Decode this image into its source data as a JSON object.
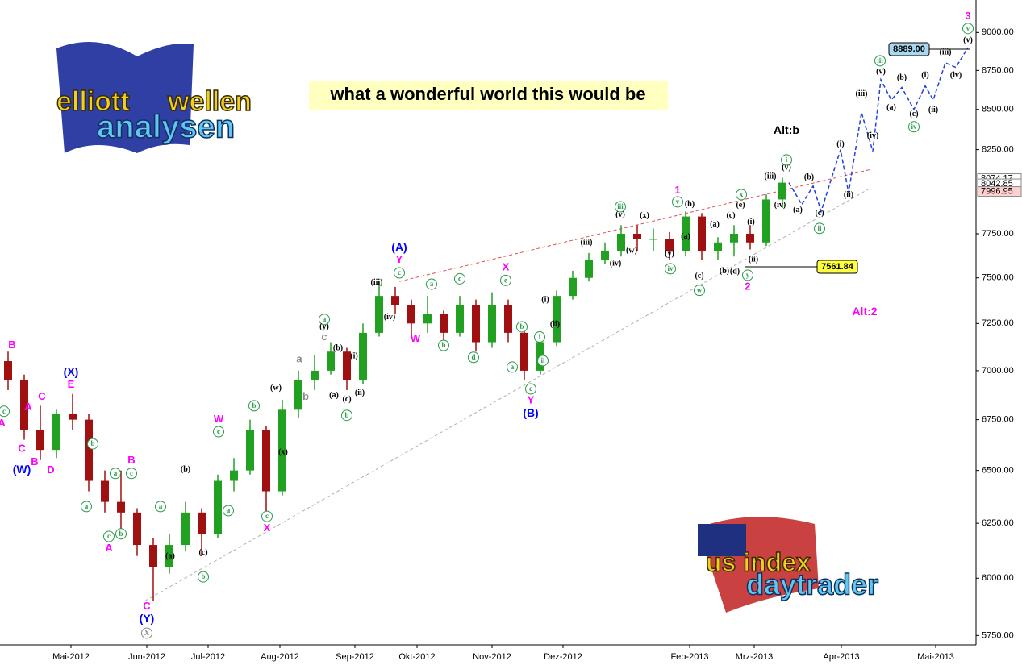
{
  "chart_data": {
    "type": "candlestick",
    "banner": "what a wonderful world this would be",
    "logo_top": [
      "elliott",
      "wellen",
      "analysen"
    ],
    "logo_bottom": [
      "us index",
      "daytrader"
    ],
    "log_scale": true,
    "grid": false,
    "up_color": "#22a022",
    "down_color": "#a01010",
    "xlim": [
      -0.5,
      60
    ],
    "ylim": [
      5710,
      9220
    ],
    "xticks": [
      {
        "value": 3.9,
        "label": "Mai-2012"
      },
      {
        "value": 8.6,
        "label": "Jun-2012"
      },
      {
        "value": 12.4,
        "label": "Jul-2012"
      },
      {
        "value": 16.85,
        "label": "Aug-2012"
      },
      {
        "value": 21.5,
        "label": "Sep-2012"
      },
      {
        "value": 25.35,
        "label": "Okt-2012"
      },
      {
        "value": 30,
        "label": "Nov-2012"
      },
      {
        "value": 34.4,
        "label": "Dez-2012"
      },
      {
        "value": 42.25,
        "label": "Feb-2013"
      },
      {
        "value": 46.25,
        "label": "Mrz-2013"
      },
      {
        "value": 51.65,
        "label": "Apr-2013"
      },
      {
        "value": 57.5,
        "label": "Mai-2013"
      }
    ],
    "yticks": [
      {
        "value": 5750,
        "label": "5750.00"
      },
      {
        "value": 6000,
        "label": "6000.00"
      },
      {
        "value": 6250,
        "label": "6250.00"
      },
      {
        "value": 6500,
        "label": "6500.00"
      },
      {
        "value": 6750,
        "label": "6750.00"
      },
      {
        "value": 7000,
        "label": "7000.00"
      },
      {
        "value": 7250,
        "label": "7250.00"
      },
      {
        "value": 7500,
        "label": "7500.00"
      },
      {
        "value": 7750,
        "label": "7750.00"
      },
      {
        "value": 8250,
        "label": "8250.00"
      },
      {
        "value": 8500,
        "label": "8500.00"
      },
      {
        "value": 8750,
        "label": "8750.00"
      },
      {
        "value": 9000,
        "label": "9000.00"
      }
    ],
    "x": [
      0,
      1,
      2,
      3,
      4,
      5,
      6,
      7,
      8,
      9,
      10,
      11,
      12,
      13,
      14,
      15,
      16,
      17,
      18,
      19,
      20,
      21,
      22,
      23,
      24,
      25,
      26,
      27,
      28,
      29,
      30,
      31,
      32,
      33,
      34,
      35,
      36,
      37,
      38,
      39,
      40,
      41,
      42,
      43,
      44,
      45,
      46,
      47,
      48
    ],
    "open": [
      7050,
      6950,
      6700,
      6600,
      6780,
      6750,
      6450,
      6350,
      6300,
      6150,
      6050,
      6150,
      6300,
      6200,
      6450,
      6500,
      6700,
      6400,
      6800,
      6950,
      7000,
      7100,
      6950,
      7200,
      7400,
      7350,
      7250,
      7300,
      7200,
      7350,
      7150,
      7350,
      7200,
      7000,
      7150,
      7400,
      7500,
      7600,
      7650,
      7750,
      7720,
      7720,
      7650,
      7850,
      7650,
      7700,
      7750,
      7700,
      7950
    ],
    "high": [
      7100,
      6980,
      6820,
      6800,
      6880,
      6780,
      6500,
      6500,
      6320,
      6180,
      6200,
      6350,
      6320,
      6480,
      6560,
      6750,
      6720,
      6850,
      7000,
      7080,
      7150,
      7120,
      7250,
      7480,
      7450,
      7380,
      7400,
      7320,
      7400,
      7380,
      7420,
      7380,
      7220,
      7200,
      7430,
      7540,
      7640,
      7700,
      7800,
      7800,
      7780,
      7760,
      7880,
      7870,
      7730,
      7800,
      7800,
      7980,
      8080
    ],
    "low": [
      6900,
      6650,
      6550,
      6560,
      6700,
      6400,
      6300,
      6220,
      6100,
      5900,
      6020,
      6120,
      6100,
      6180,
      6400,
      6480,
      6300,
      6380,
      6760,
      6900,
      6980,
      6900,
      6930,
      7180,
      7300,
      7180,
      7200,
      7150,
      7180,
      7100,
      7120,
      7150,
      6950,
      6980,
      7130,
      7380,
      7480,
      7580,
      7620,
      7650,
      7650,
      7600,
      7620,
      7600,
      7600,
      7620,
      7660,
      7680,
      7900
    ],
    "close": [
      6950,
      6700,
      6600,
      6780,
      6750,
      6450,
      6350,
      6300,
      6150,
      6050,
      6150,
      6300,
      6200,
      6450,
      6500,
      6700,
      6400,
      6800,
      6950,
      7000,
      7100,
      6950,
      7200,
      7400,
      7350,
      7250,
      7300,
      7200,
      7350,
      7150,
      7350,
      7200,
      7000,
      7150,
      7400,
      7500,
      7600,
      7650,
      7750,
      7720,
      7720,
      7650,
      7850,
      7650,
      7700,
      7750,
      7700,
      7950,
      8050
    ],
    "projection": {
      "color": "#2040e0",
      "x": [
        48.4,
        49.2,
        49.9,
        50.4,
        51.6,
        52.1,
        52.9,
        53.6,
        54.1,
        54.75,
        55.4,
        56.15,
        56.85,
        57.35,
        58.1,
        58.75,
        59.5
      ],
      "values": [
        8050,
        7920,
        8030,
        7880,
        8250,
        7990,
        8480,
        8240,
        8690,
        8560,
        8640,
        8500,
        8650,
        8560,
        8800,
        8770,
        8900
      ]
    },
    "trendlines": [
      {
        "color": "#e05050",
        "x": [
          24.25,
          53.5
        ],
        "values": [
          7480,
          8130
        ]
      },
      {
        "color": "#b0b0b0",
        "x": [
          8.5,
          53.5
        ],
        "values": [
          5900,
          8020
        ]
      }
    ],
    "reference_line": 7350,
    "axis_marks": [
      {
        "value": 8074.17,
        "color": "#ffffff"
      },
      {
        "value": 8042.85,
        "color": "#ffffff"
      },
      {
        "value": 7996.95,
        "color": "#ffd0d0"
      }
    ],
    "callouts": [
      {
        "value": 8889,
        "label": "8889.00",
        "x": 55.85,
        "color": "#a8d8f0"
      },
      {
        "value": 7561.84,
        "label": "7561.84",
        "x": 51.4,
        "color": "#ffff40"
      }
    ],
    "labels": [
      {
        "text": "(A)",
        "x": 24.25,
        "y": 7668,
        "color": "#0000ff"
      },
      {
        "text": "(B)",
        "x": 32.4,
        "y": 6780,
        "color": "#0000ff"
      },
      {
        "text": "(Y)",
        "x": 8.6,
        "y": 5819,
        "color": "#0000ff"
      },
      {
        "text": "(X)",
        "x": 3.9,
        "y": 6989,
        "color": "#0000ff"
      },
      {
        "text": "(W)",
        "x": 0.85,
        "y": 6502,
        "color": "#0000ff"
      },
      {
        "text": "Y",
        "x": 24.25,
        "y": 7601,
        "color": "#ff00ff"
      },
      {
        "text": "W",
        "x": 25.25,
        "y": 7168,
        "color": "#ff00ff"
      },
      {
        "text": "X",
        "x": 30.85,
        "y": 7556,
        "color": "#ff00ff"
      },
      {
        "text": "Y",
        "x": 32.4,
        "y": 6845,
        "color": "#ff00ff"
      },
      {
        "text": "1",
        "x": 41.5,
        "y": 8003,
        "color": "#ff00ff"
      },
      {
        "text": "2",
        "x": 45.85,
        "y": 7449,
        "color": "#ff00ff"
      },
      {
        "text": "3",
        "x": 59.5,
        "y": 9108,
        "color": "#ff00ff"
      },
      {
        "text": "C",
        "x": 8.6,
        "y": 5875,
        "color": "#ff00ff"
      },
      {
        "text": "E",
        "x": 3.9,
        "y": 6927,
        "color": "#ff00ff"
      },
      {
        "text": "W",
        "x": 13.05,
        "y": 6751,
        "color": "#ff00ff"
      },
      {
        "text": "X",
        "x": 16.05,
        "y": 6226,
        "color": "#ff00ff"
      },
      {
        "text": "A",
        "x": 6.25,
        "y": 6133,
        "color": "#ff00ff"
      },
      {
        "text": "B",
        "x": 7.65,
        "y": 6548,
        "color": "#ff00ff"
      },
      {
        "text": "B",
        "x": 0.25,
        "y": 7133,
        "color": "#ff00ff"
      },
      {
        "text": "A",
        "x": 1.25,
        "y": 6812,
        "color": "#ff00ff"
      },
      {
        "text": "C",
        "x": 2.1,
        "y": 6864,
        "color": "#ff00ff"
      },
      {
        "text": "A",
        "x": -0.4,
        "y": 6730,
        "color": "#ff00ff"
      },
      {
        "text": "C",
        "x": 0.85,
        "y": 6605,
        "color": "#ff00ff"
      },
      {
        "text": "B",
        "x": 1.65,
        "y": 6540,
        "color": "#ff00ff"
      },
      {
        "text": "D",
        "x": 2.65,
        "y": 6500,
        "color": "#ff00ff"
      },
      {
        "text": "Alt:2",
        "x": 53.1,
        "y": 7311,
        "color": "#ff00ff"
      },
      {
        "text": "Alt:b",
        "x": 48.25,
        "y": 8365,
        "color": "#000000"
      },
      {
        "text": "iii",
        "x": 37.95,
        "y": 7907,
        "color": "#2a9a4a",
        "circled": true
      },
      {
        "text": "iv",
        "x": 41.05,
        "y": 7551,
        "color": "#2a9a4a",
        "circled": true
      },
      {
        "text": "v",
        "x": 41.5,
        "y": 7936,
        "color": "#2a9a4a",
        "circled": true
      },
      {
        "text": "w",
        "x": 42.85,
        "y": 7431,
        "color": "#2a9a4a",
        "circled": true
      },
      {
        "text": "x",
        "x": 45.45,
        "y": 7979,
        "color": "#2a9a4a",
        "circled": true
      },
      {
        "text": "y",
        "x": 45.85,
        "y": 7515,
        "color": "#2a9a4a",
        "circled": true
      },
      {
        "text": "i",
        "x": 48.25,
        "y": 8187,
        "color": "#2a9a4a",
        "circled": true
      },
      {
        "text": "ii",
        "x": 50.3,
        "y": 7781,
        "color": "#2a9a4a",
        "circled": true
      },
      {
        "text": "iii",
        "x": 54.05,
        "y": 8813,
        "color": "#2a9a4a",
        "circled": true
      },
      {
        "text": "iv",
        "x": 56.15,
        "y": 8391,
        "color": "#2a9a4a",
        "circled": true
      },
      {
        "text": "v",
        "x": 59.5,
        "y": 9027,
        "color": "#2a9a4a",
        "circled": true
      },
      {
        "text": "c",
        "x": 24.25,
        "y": 7528,
        "color": "#2a9a4a",
        "circled": true
      },
      {
        "text": "a",
        "x": 26.25,
        "y": 7465,
        "color": "#2a9a4a",
        "circled": true
      },
      {
        "text": "c",
        "x": 28,
        "y": 7495,
        "color": "#2a9a4a",
        "circled": true
      },
      {
        "text": "e",
        "x": 30.85,
        "y": 7486,
        "color": "#2a9a4a",
        "circled": true
      },
      {
        "text": "d",
        "x": 28.85,
        "y": 7070,
        "color": "#2a9a4a",
        "circled": true
      },
      {
        "text": "b",
        "x": 27,
        "y": 7133,
        "color": "#2a9a4a",
        "circled": true
      },
      {
        "text": "a",
        "x": 31.25,
        "y": 7019,
        "color": "#2a9a4a",
        "circled": true
      },
      {
        "text": "c",
        "x": 32.4,
        "y": 6906,
        "color": "#2a9a4a",
        "circled": true
      },
      {
        "text": "ii",
        "x": 33.15,
        "y": 7053,
        "color": "#2a9a4a",
        "circled": true
      },
      {
        "text": "i",
        "x": 32.95,
        "y": 7178,
        "color": "#2a9a4a",
        "circled": true
      },
      {
        "text": "b",
        "x": 31.85,
        "y": 7232,
        "color": "#2a9a4a",
        "circled": true
      },
      {
        "text": "c",
        "x": 13.05,
        "y": 6690,
        "color": "#2a9a4a",
        "circled": true
      },
      {
        "text": "b",
        "x": 15.25,
        "y": 6820,
        "color": "#2a9a4a",
        "circled": true
      },
      {
        "text": "a",
        "x": 13.65,
        "y": 6309,
        "color": "#2a9a4a",
        "circled": true
      },
      {
        "text": "c",
        "x": 16.05,
        "y": 6282,
        "color": "#2a9a4a",
        "circled": true
      },
      {
        "text": "b",
        "x": 12.1,
        "y": 6006,
        "color": "#2a9a4a",
        "circled": true
      },
      {
        "text": "a",
        "x": 9.45,
        "y": 6328,
        "color": "#2a9a4a",
        "circled": true
      },
      {
        "text": "X",
        "x": 8.6,
        "y": 5760,
        "color": "#888888",
        "circled": true
      },
      {
        "text": "c",
        "x": 7.65,
        "y": 6486,
        "color": "#2a9a4a",
        "circled": true
      },
      {
        "text": "a",
        "x": 6.65,
        "y": 6486,
        "color": "#2a9a4a",
        "circled": true
      },
      {
        "text": "b",
        "x": 7,
        "y": 6201,
        "color": "#2a9a4a",
        "circled": true
      },
      {
        "text": "c",
        "x": 6.25,
        "y": 6189,
        "color": "#2a9a4a",
        "circled": true
      },
      {
        "text": "b",
        "x": 5.25,
        "y": 6630,
        "color": "#2a9a4a",
        "circled": true
      },
      {
        "text": "a",
        "x": 4.85,
        "y": 6328,
        "color": "#2a9a4a",
        "circled": true
      },
      {
        "text": "c",
        "x": -0.25,
        "y": 6792,
        "color": "#2a9a4a",
        "circled": true
      },
      {
        "text": "a",
        "x": 19.6,
        "y": 7272,
        "color": "#2a9a4a",
        "circled": true
      },
      {
        "text": "b",
        "x": 21,
        "y": 6772,
        "color": "#2a9a4a",
        "circled": true
      },
      {
        "text": "(iii)",
        "x": 22.85,
        "y": 7474,
        "color": "#000000"
      },
      {
        "text": "(iv)",
        "x": 23.65,
        "y": 7283,
        "color": "#000000"
      },
      {
        "text": "(i)",
        "x": 21.45,
        "y": 7075,
        "color": "#000000"
      },
      {
        "text": "(ii)",
        "x": 21.8,
        "y": 6884,
        "color": "#000000"
      },
      {
        "text": "(a)",
        "x": 20.2,
        "y": 6872,
        "color": "#000000"
      },
      {
        "text": "(b)",
        "x": 20.45,
        "y": 7117,
        "color": "#000000"
      },
      {
        "text": "(c)",
        "x": 21,
        "y": 6852,
        "color": "#000000"
      },
      {
        "text": "(y)",
        "x": 19.6,
        "y": 7232,
        "color": "#000000"
      },
      {
        "text": "(w)",
        "x": 16.6,
        "y": 6909,
        "color": "#000000"
      },
      {
        "text": "(x)",
        "x": 17.05,
        "y": 6587,
        "color": "#000000"
      },
      {
        "text": "(a)",
        "x": 10.05,
        "y": 6098,
        "color": "#000000"
      },
      {
        "text": "(b)",
        "x": 11,
        "y": 6504,
        "color": "#000000"
      },
      {
        "text": "(c)",
        "x": 12.1,
        "y": 6115,
        "color": "#000000"
      },
      {
        "text": "(iii)",
        "x": 35.85,
        "y": 7697,
        "color": "#000000"
      },
      {
        "text": "(iv)",
        "x": 37.65,
        "y": 7578,
        "color": "#000000"
      },
      {
        "text": "(v)",
        "x": 37.95,
        "y": 7859,
        "color": "#000000"
      },
      {
        "text": "(w)",
        "x": 38.65,
        "y": 7651,
        "color": "#000000"
      },
      {
        "text": "(x)",
        "x": 39.45,
        "y": 7854,
        "color": "#000000"
      },
      {
        "text": "(y)",
        "x": 41,
        "y": 7633,
        "color": "#000000"
      },
      {
        "text": "(b)",
        "x": 42.25,
        "y": 7920,
        "color": "#000000"
      },
      {
        "text": "(a)",
        "x": 42,
        "y": 7733,
        "color": "#000000"
      },
      {
        "text": "(c)",
        "x": 42.85,
        "y": 7510,
        "color": "#000000"
      },
      {
        "text": "(b)",
        "x": 44.4,
        "y": 7537,
        "color": "#000000"
      },
      {
        "text": "(d)",
        "x": 45.05,
        "y": 7533,
        "color": "#000000"
      },
      {
        "text": "(e)",
        "x": 45.4,
        "y": 7915,
        "color": "#000000"
      },
      {
        "text": "(c)",
        "x": 44.8,
        "y": 7854,
        "color": "#000000"
      },
      {
        "text": "(a)",
        "x": 43.8,
        "y": 7803,
        "color": "#000000"
      },
      {
        "text": "(i)",
        "x": 46.05,
        "y": 7817,
        "color": "#000000"
      },
      {
        "text": "(ii)",
        "x": 46.2,
        "y": 7601,
        "color": "#000000"
      },
      {
        "text": "(iii)",
        "x": 47.25,
        "y": 8086,
        "color": "#000000"
      },
      {
        "text": "(iv)",
        "x": 47.85,
        "y": 7915,
        "color": "#000000"
      },
      {
        "text": "(v)",
        "x": 48.25,
        "y": 8140,
        "color": "#000000"
      },
      {
        "text": "(a)",
        "x": 48.95,
        "y": 7887,
        "color": "#000000"
      },
      {
        "text": "(b)",
        "x": 49.65,
        "y": 8081,
        "color": "#000000"
      },
      {
        "text": "(c)",
        "x": 50.3,
        "y": 7868,
        "color": "#000000"
      },
      {
        "text": "(i)",
        "x": 51.6,
        "y": 8281,
        "color": "#000000"
      },
      {
        "text": "(ii)",
        "x": 52.1,
        "y": 7976,
        "color": "#000000"
      },
      {
        "text": "(iii)",
        "x": 52.9,
        "y": 8597,
        "color": "#000000"
      },
      {
        "text": "(iv)",
        "x": 53.6,
        "y": 8334,
        "color": "#000000"
      },
      {
        "text": "(v)",
        "x": 54.1,
        "y": 8741,
        "color": "#000000"
      },
      {
        "text": "(a)",
        "x": 54.75,
        "y": 8511,
        "color": "#000000"
      },
      {
        "text": "(b)",
        "x": 55.4,
        "y": 8700,
        "color": "#000000"
      },
      {
        "text": "(c)",
        "x": 56.15,
        "y": 8471,
        "color": "#000000"
      },
      {
        "text": "(i)",
        "x": 56.85,
        "y": 8716,
        "color": "#000000"
      },
      {
        "text": "(ii)",
        "x": 57.35,
        "y": 8496,
        "color": "#000000"
      },
      {
        "text": "(iii)",
        "x": 58.1,
        "y": 8866,
        "color": "#000000"
      },
      {
        "text": "(iv)",
        "x": 58.75,
        "y": 8716,
        "color": "#000000"
      },
      {
        "text": "(v)",
        "x": 59.5,
        "y": 8946,
        "color": "#000000"
      },
      {
        "text": "(i)",
        "x": 33.3,
        "y": 7377,
        "color": "#000000"
      },
      {
        "text": "(ii)",
        "x": 33.9,
        "y": 7245,
        "color": "#000000"
      },
      {
        "text": "a",
        "x": 18.05,
        "y": 7058,
        "color": "#888888"
      },
      {
        "text": "b",
        "x": 18.45,
        "y": 6864,
        "color": "#888888"
      },
      {
        "text": "c",
        "x": 19.6,
        "y": 7176,
        "color": "#888888"
      }
    ]
  }
}
